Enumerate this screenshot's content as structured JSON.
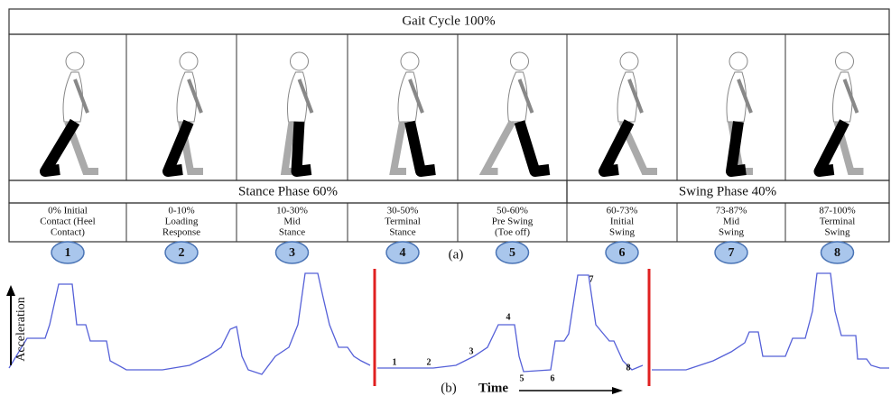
{
  "header": {
    "title": "Gait Cycle 100%"
  },
  "phases": [
    {
      "label": "Stance Phase 60%"
    },
    {
      "label": "Swing Phase 40%"
    }
  ],
  "steps": [
    {
      "lines": [
        "0% Initial",
        "Contact (Heel",
        "Contact)"
      ],
      "number": "1"
    },
    {
      "lines": [
        "0-10%",
        "Loading",
        "Response"
      ],
      "number": "2"
    },
    {
      "lines": [
        "10-30%",
        "Mid",
        "Stance"
      ],
      "number": "3"
    },
    {
      "lines": [
        "30-50%",
        "Terminal",
        "Stance"
      ],
      "number": "4"
    },
    {
      "lines": [
        "50-60%",
        "Pre Swing",
        "(Toe off)"
      ],
      "number": "5"
    },
    {
      "lines": [
        "60-73%",
        "Initial",
        "Swing"
      ],
      "number": "6"
    },
    {
      "lines": [
        "73-87%",
        "Mid",
        "Swing"
      ],
      "number": "7"
    },
    {
      "lines": [
        "87-100%",
        "Terminal",
        "Swing"
      ],
      "number": "8"
    }
  ],
  "panel_a": {
    "label": "(a)"
  },
  "panel_b": {
    "label": "(b)",
    "x_label": "Time",
    "y_label": "Acceleration",
    "annotations": [
      "1",
      "2",
      "3",
      "4",
      "5",
      "6",
      "7",
      "8"
    ]
  }
}
